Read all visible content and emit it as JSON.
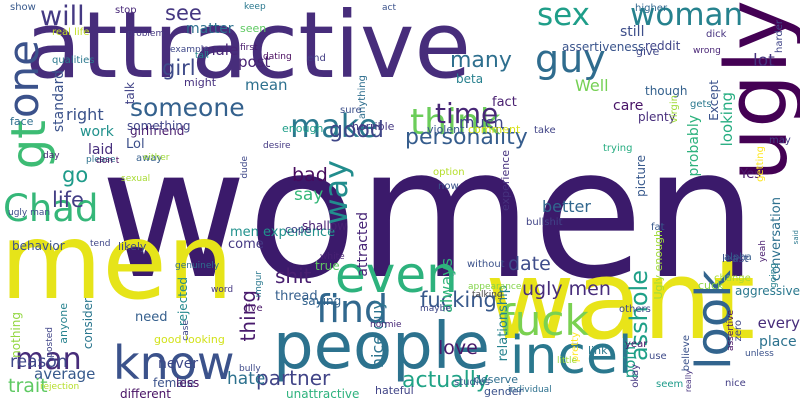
{
  "words": [
    {
      "text": "women",
      "color": "#3b1a6b"
    },
    {
      "text": "attractive",
      "color": "#472d7b"
    },
    {
      "text": "men",
      "color": "#e6e419"
    },
    {
      "text": "want",
      "color": "#e8e419"
    },
    {
      "text": "people",
      "color": "#2c728e"
    },
    {
      "text": "know",
      "color": "#3b528b"
    },
    {
      "text": "incel",
      "color": "#2a788e"
    },
    {
      "text": "fuck",
      "color": "#7ad151"
    },
    {
      "text": "Chad",
      "color": "#35b779"
    },
    {
      "text": "ugly",
      "color": "#440154"
    },
    {
      "text": "one",
      "color": "#3b528b"
    },
    {
      "text": "gt",
      "color": "#3dbc74"
    },
    {
      "text": "even",
      "color": "#2db27d"
    },
    {
      "text": "find",
      "color": "#31688e"
    },
    {
      "text": "look",
      "color": "#32648e"
    },
    {
      "text": "sex",
      "color": "#1f9e89"
    },
    {
      "text": "woman",
      "color": "#26828e"
    },
    {
      "text": "make",
      "color": "#2a788e"
    },
    {
      "text": "think",
      "color": "#6ccd5a"
    },
    {
      "text": "guy",
      "color": "#2f6c8e"
    },
    {
      "text": "will",
      "color": "#443983"
    },
    {
      "text": "way",
      "color": "#228d8d"
    },
    {
      "text": "someone",
      "color": "#34618d"
    },
    {
      "text": "time",
      "color": "#482777"
    },
    {
      "text": "personality",
      "color": "#365d8d"
    },
    {
      "text": "man",
      "color": "#472c7a"
    },
    {
      "text": "thing",
      "color": "#481a6c"
    },
    {
      "text": "fucking",
      "color": "#38598c"
    },
    {
      "text": "actually",
      "color": "#20a386"
    },
    {
      "text": "partner",
      "color": "#414487"
    },
    {
      "text": "asshole",
      "color": "#1fa088"
    },
    {
      "text": "girl",
      "color": "#3e4a89"
    },
    {
      "text": "see",
      "color": "#453781"
    },
    {
      "text": "many",
      "color": "#2e6f8e"
    },
    {
      "text": "good",
      "color": "#3f4788"
    },
    {
      "text": "life",
      "color": "#433e85"
    },
    {
      "text": "go",
      "color": "#1e9b8a"
    },
    {
      "text": "shit",
      "color": "#481f70"
    },
    {
      "text": "date",
      "color": "#3e4c8a"
    },
    {
      "text": "ugly men",
      "color": "#472d7b"
    },
    {
      "text": "love",
      "color": "#48186a"
    },
    {
      "text": "hate",
      "color": "#2d718e"
    },
    {
      "text": "average",
      "color": "#375a8c"
    },
    {
      "text": "reason",
      "color": "#3f4889"
    },
    {
      "text": "trait",
      "color": "#5ec962"
    },
    {
      "text": "nice guy",
      "color": "#2c738e"
    },
    {
      "text": "always",
      "color": "#31b57b"
    },
    {
      "text": "relationship",
      "color": "#26828e"
    },
    {
      "text": "better",
      "color": "#31678e"
    },
    {
      "text": "point",
      "color": "#1fa088"
    },
    {
      "text": "bad",
      "color": "#460b5e"
    },
    {
      "text": "say",
      "color": "#35b779"
    },
    {
      "text": "much",
      "color": "#404588"
    },
    {
      "text": "work",
      "color": "#21918c"
    },
    {
      "text": "right",
      "color": "#3b528b"
    },
    {
      "text": "laid",
      "color": "#472f7d"
    },
    {
      "text": "post",
      "color": "#482374"
    },
    {
      "text": "male",
      "color": "#482576"
    },
    {
      "text": "mean",
      "color": "#2d708e"
    },
    {
      "text": "care",
      "color": "#481467"
    },
    {
      "text": "Well",
      "color": "#75d054"
    },
    {
      "text": "lot",
      "color": "#46327e"
    },
    {
      "text": "still",
      "color": "#3d4e8a"
    },
    {
      "text": "matter",
      "color": "#2d708e"
    },
    {
      "text": "seen",
      "color": "#5ec962"
    },
    {
      "text": "standard",
      "color": "#3b528b"
    },
    {
      "text": "talk",
      "color": "#414487"
    },
    {
      "text": "girlfriend",
      "color": "#481b6d"
    },
    {
      "text": "something",
      "color": "#404588"
    },
    {
      "text": "attracted",
      "color": "#482677"
    },
    {
      "text": "never",
      "color": "#3e4989"
    },
    {
      "text": "need",
      "color": "#355f8d"
    },
    {
      "text": "rejected",
      "color": "#23898e"
    },
    {
      "text": "consider",
      "color": "#2a768e"
    },
    {
      "text": "anyone",
      "color": "#26828e"
    },
    {
      "text": "nothing",
      "color": "#93d741"
    },
    {
      "text": "female",
      "color": "#3b528b"
    },
    {
      "text": "less",
      "color": "#471365"
    },
    {
      "text": "different",
      "color": "#471164"
    },
    {
      "text": "unattractive",
      "color": "#2db27d"
    },
    {
      "text": "Yes",
      "color": "#481769"
    },
    {
      "text": "every",
      "color": "#472c7a"
    },
    {
      "text": "place",
      "color": "#2c728e"
    },
    {
      "text": "conversation",
      "color": "#2d708e"
    },
    {
      "text": "looking",
      "color": "#26ad81"
    },
    {
      "text": "Except",
      "color": "#3b528b"
    },
    {
      "text": "probably",
      "color": "#2db27d"
    },
    {
      "text": "plenty",
      "color": "#472d7b"
    },
    {
      "text": "fact",
      "color": "#481f70"
    },
    {
      "text": "beta",
      "color": "#27808e"
    },
    {
      "text": "reddit",
      "color": "#404588"
    },
    {
      "text": "picture",
      "color": "#38598c"
    },
    {
      "text": "give",
      "color": "#3f4788"
    },
    {
      "text": "experience",
      "color": "#46327e"
    },
    {
      "text": "though",
      "color": "#34618d"
    },
    {
      "text": "assertiveness",
      "color": "#3a548c"
    },
    {
      "text": "real life",
      "color": "#c2df23"
    },
    {
      "text": "qualities",
      "color": "#2a788e"
    },
    {
      "text": "dating",
      "color": "#46085c"
    },
    {
      "text": "example",
      "color": "#3f4889"
    },
    {
      "text": "tall",
      "color": "#23898e"
    },
    {
      "text": "might",
      "color": "#46307e"
    },
    {
      "text": "first",
      "color": "#481a6c"
    },
    {
      "text": "end",
      "color": "#433e85"
    },
    {
      "text": "anything",
      "color": "#2e6e8e"
    },
    {
      "text": "sure",
      "color": "#3c4f8a"
    },
    {
      "text": "horrible",
      "color": "#453882"
    },
    {
      "text": "enough",
      "color": "#1f9e89"
    },
    {
      "text": "violent",
      "color": "#39558c"
    },
    {
      "text": "comment",
      "color": "#d8e219"
    },
    {
      "text": "take",
      "color": "#414487"
    },
    {
      "text": "trying",
      "color": "#27ad81"
    },
    {
      "text": "keep",
      "color": "#2a788e"
    },
    {
      "text": "act",
      "color": "#3b528b"
    },
    {
      "text": "higher",
      "color": "#31688e"
    },
    {
      "text": "show",
      "color": "#38598c"
    },
    {
      "text": "stop",
      "color": "#482878"
    },
    {
      "text": "problem",
      "color": "#453781"
    },
    {
      "text": "dick",
      "color": "#46337f"
    },
    {
      "text": "wrong",
      "color": "#482475"
    },
    {
      "text": "harder",
      "color": "#404588"
    },
    {
      "text": "virgin",
      "color": "#a0da39"
    },
    {
      "text": "gets",
      "color": "#2a788e"
    },
    {
      "text": "may",
      "color": "#433d84"
    },
    {
      "text": "getting",
      "color": "#fde725"
    },
    {
      "text": "Lol",
      "color": "#3c4f8a"
    },
    {
      "text": "away",
      "color": "#355f8d"
    },
    {
      "text": "day",
      "color": "#482576"
    },
    {
      "text": "please",
      "color": "#2c738e"
    },
    {
      "text": "face",
      "color": "#2e6e8e"
    },
    {
      "text": "sexual",
      "color": "#a8db34"
    },
    {
      "text": "don t",
      "color": "#46085c"
    },
    {
      "text": "ugly man",
      "color": "#3e4c8a"
    },
    {
      "text": "desire",
      "color": "#443983"
    },
    {
      "text": "now",
      "color": "#3b528b"
    },
    {
      "text": "option",
      "color": "#b5de2b"
    },
    {
      "text": "fat",
      "color": "#38598c"
    },
    {
      "text": "cuck",
      "color": "#8bd646"
    },
    {
      "text": "men experience",
      "color": "#21918c"
    },
    {
      "text": "come",
      "color": "#443983"
    },
    {
      "text": "cope",
      "color": "#414487"
    },
    {
      "text": "shallow",
      "color": "#482173"
    },
    {
      "text": "true",
      "color": "#5ec962"
    },
    {
      "text": "dude",
      "color": "#3f4889"
    },
    {
      "text": "bullshit",
      "color": "#414487"
    },
    {
      "text": "Ugly enough",
      "color": "#9fda3a"
    },
    {
      "text": "genuinely",
      "color": "#2e6d8e"
    },
    {
      "text": "likely",
      "color": "#3e4989"
    },
    {
      "text": "tend",
      "color": "#3f4788"
    },
    {
      "text": "behavior",
      "color": "#3b528b"
    },
    {
      "text": "imgur",
      "color": "#2a788e"
    },
    {
      "text": "white",
      "color": "#482173"
    },
    {
      "text": "without",
      "color": "#3b528b"
    },
    {
      "text": "appearance",
      "color": "#84d44b"
    },
    {
      "text": "talking",
      "color": "#4a4a4a"
    },
    {
      "text": "alpha",
      "color": "#355e8d"
    },
    {
      "text": "least",
      "color": "#3b528b"
    },
    {
      "text": "change",
      "color": "#a8db34"
    },
    {
      "text": "yeah",
      "color": "#481c6e"
    },
    {
      "text": "going",
      "color": "#26828e"
    },
    {
      "text": "said",
      "color": "#2a788e"
    },
    {
      "text": "aggressive",
      "color": "#2a788e"
    },
    {
      "text": "assertive",
      "color": "#471063"
    },
    {
      "text": "zero",
      "color": "#3f4788"
    },
    {
      "text": "thread",
      "color": "#355f8d"
    },
    {
      "text": "saying",
      "color": "#33638d"
    },
    {
      "text": "live",
      "color": "#481467"
    },
    {
      "text": "maybe",
      "color": "#3f4788"
    },
    {
      "text": "normie",
      "color": "#482878"
    },
    {
      "text": "others",
      "color": "#3e4a89"
    },
    {
      "text": "pretty",
      "color": "#fde725"
    },
    {
      "text": "okay",
      "color": "#453882"
    },
    {
      "text": "seem",
      "color": "#1e9b8a"
    },
    {
      "text": "believe",
      "color": "#3b528b"
    },
    {
      "text": "really",
      "color": "#46327e"
    },
    {
      "text": "link",
      "color": "#2a788e"
    },
    {
      "text": "little",
      "color": "#9fda3a"
    },
    {
      "text": "year",
      "color": "#481467"
    },
    {
      "text": "use",
      "color": "#3e4a89"
    },
    {
      "text": "hateful",
      "color": "#414487"
    },
    {
      "text": "studies",
      "color": "#39568c"
    },
    {
      "text": "deserve",
      "color": "#2e6e8e"
    },
    {
      "text": "individual",
      "color": "#2d708e"
    },
    {
      "text": "gender",
      "color": "#3b528b"
    },
    {
      "text": "nice",
      "color": "#433e85"
    },
    {
      "text": "unless",
      "color": "#3b528b"
    },
    {
      "text": "good looking",
      "color": "#d2e21b"
    },
    {
      "text": "bully",
      "color": "#3e4a89"
    },
    {
      "text": "word",
      "color": "#453882"
    },
    {
      "text": "case",
      "color": "#3f4788"
    },
    {
      "text": "rejection",
      "color": "#b5de2b"
    },
    {
      "text": "posted",
      "color": "#404588"
    },
    {
      "text": "either",
      "color": "#9fda3a"
    },
    {
      "text": "kid",
      "color": "#3b528b"
    }
  ]
}
